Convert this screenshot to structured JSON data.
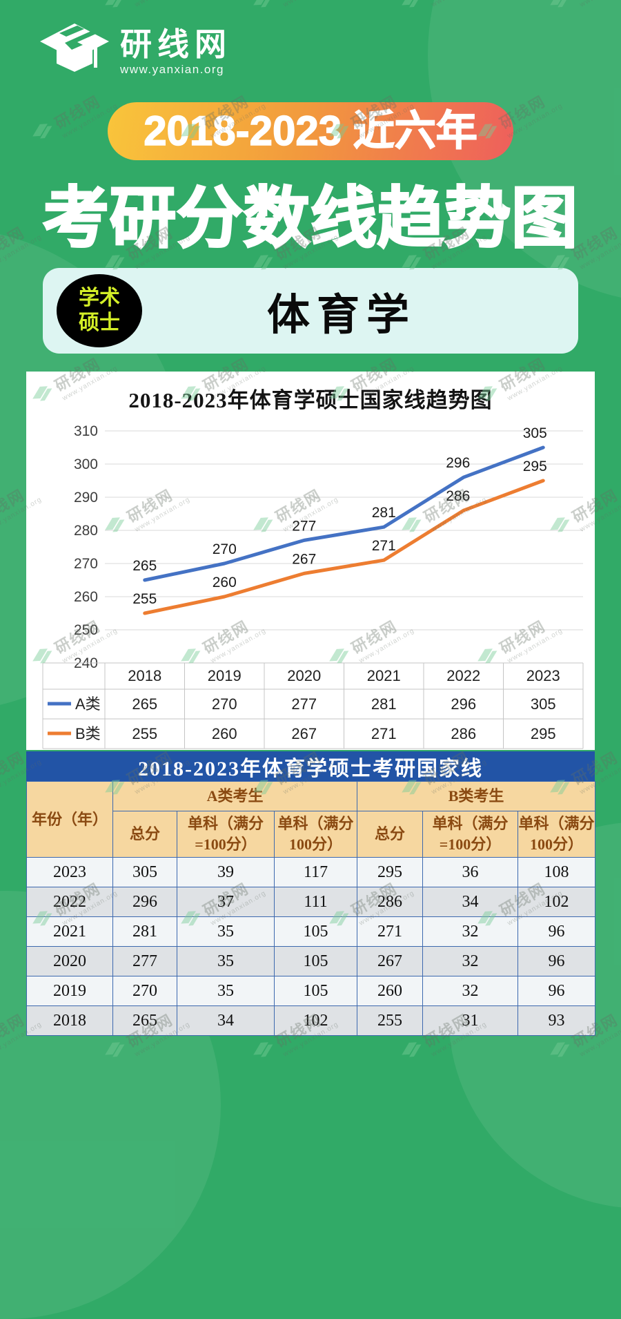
{
  "brand": {
    "name": "研线网",
    "url": "www.yanxian.org"
  },
  "header": {
    "badge": "2018-2023 近六年",
    "title": "考研分数线趋势图"
  },
  "subject_card": {
    "tag_line1": "学术",
    "tag_line2": "硕士",
    "subject": "体育学"
  },
  "chart_data": {
    "type": "line",
    "title": "2018-2023年体育学硕士国家线趋势图",
    "categories": [
      "2018",
      "2019",
      "2020",
      "2021",
      "2022",
      "2023"
    ],
    "series": [
      {
        "name": "A类",
        "color": "#4472c4",
        "values": [
          265,
          270,
          277,
          281,
          296,
          305
        ]
      },
      {
        "name": "B类",
        "color": "#ed7d31",
        "values": [
          255,
          260,
          267,
          271,
          286,
          295
        ]
      }
    ],
    "ylim": [
      240,
      310
    ],
    "yticks": [
      240,
      250,
      260,
      270,
      280,
      290,
      300,
      310
    ],
    "grid": true,
    "data_labels": true,
    "legend_position": "left-of-data-table",
    "xlabel": "",
    "ylabel": ""
  },
  "score_table": {
    "title": "2018-2023年体育学硕士考研国家线",
    "year_header": "年份（年）",
    "group_a_header": "A类考生",
    "group_b_header": "B类考生",
    "sub_headers": [
      "总分",
      "单科（满分=100分）",
      "单科（满分100分）",
      "总分",
      "单科（满分=100分）",
      "单科（满分100分）"
    ],
    "rows": [
      [
        "2023",
        "305",
        "39",
        "117",
        "295",
        "36",
        "108"
      ],
      [
        "2022",
        "296",
        "37",
        "111",
        "286",
        "34",
        "102"
      ],
      [
        "2021",
        "281",
        "35",
        "105",
        "271",
        "32",
        "96"
      ],
      [
        "2020",
        "277",
        "35",
        "105",
        "267",
        "32",
        "96"
      ],
      [
        "2019",
        "270",
        "35",
        "105",
        "260",
        "32",
        "96"
      ],
      [
        "2018",
        "265",
        "34",
        "102",
        "255",
        "31",
        "93"
      ]
    ]
  },
  "watermark": {
    "name": "研线网",
    "url": "www.yanxian.org"
  },
  "colors": {
    "background": "#31aa67",
    "badge_gradient_start": "#f9c53b",
    "badge_gradient_mid": "#f29a3d",
    "badge_gradient_end": "#ee5f5c",
    "card_bg": "#ddf5f2",
    "tag_bg": "#000000",
    "tag_text": "#d3ee27",
    "banner_bg": "#2254a6",
    "table_header_bg": "#f6d7a0",
    "table_header_text": "#8a4a12",
    "table_border": "#3c68ae",
    "row_light": "#f2f5f7",
    "row_dark": "#dfe2e5",
    "line_a": "#4472c4",
    "line_b": "#ed7d31"
  }
}
